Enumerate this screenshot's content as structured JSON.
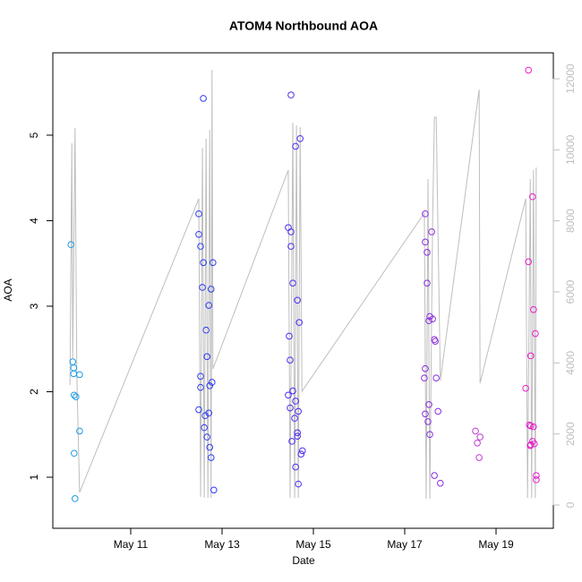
{
  "chart_data": {
    "type": "scatter",
    "title": "ATOM4 Northbound AOA",
    "x_label": "Date",
    "y_label": "AOA",
    "xlim": [
      9.294,
      20.255
    ],
    "ylim": [
      0.403,
      5.963
    ],
    "y2lim": [
      -655,
      12731
    ],
    "xticks": [
      {
        "value": 11,
        "label": "May 11"
      },
      {
        "value": 13,
        "label": "May 13"
      },
      {
        "value": 15,
        "label": "May 15"
      },
      {
        "value": 17,
        "label": "May 17"
      },
      {
        "value": 19,
        "label": "May 19"
      }
    ],
    "yticks": [
      1,
      2,
      3,
      4,
      5
    ],
    "y2ticks": [
      0,
      2000,
      4000,
      6000,
      8000,
      10000,
      12000
    ],
    "y2_color": "#bebebe",
    "point_groups": [
      {
        "color": "#1c9be6",
        "x": [
          9.69,
          9.73,
          9.75,
          9.75,
          9.76,
          9.8,
          9.88,
          9.88,
          9.76,
          9.78
        ],
        "values": [
          3.72,
          2.35,
          2.28,
          2.21,
          1.96,
          1.94,
          2.2,
          1.54,
          1.28,
          0.75
        ]
      },
      {
        "color": "#2f3cf0",
        "x": [
          12.59,
          12.49,
          12.49,
          12.53,
          12.59,
          12.8,
          12.57,
          12.76,
          12.71,
          12.65,
          12.67,
          12.53,
          12.78,
          12.53,
          12.73,
          12.49,
          12.71,
          12.63,
          12.61,
          12.67,
          12.73,
          12.76,
          12.82
        ],
        "values": [
          5.43,
          4.08,
          3.84,
          3.7,
          3.51,
          3.51,
          3.22,
          3.2,
          3.01,
          2.72,
          2.41,
          2.18,
          2.11,
          2.05,
          2.07,
          1.79,
          1.75,
          1.72,
          1.58,
          1.47,
          1.35,
          1.23,
          0.85
        ]
      },
      {
        "color": "#4a2ef0",
        "x": [
          14.51,
          14.71,
          14.61,
          14.45,
          14.51,
          14.51,
          14.55,
          14.65,
          14.69,
          14.47,
          14.49,
          14.55,
          14.45,
          14.61,
          14.49,
          14.67,
          14.59,
          14.65,
          14.65,
          14.53,
          14.76,
          14.73,
          14.61,
          14.67
        ],
        "values": [
          5.47,
          4.96,
          4.87,
          3.92,
          3.87,
          3.7,
          3.27,
          3.07,
          2.81,
          2.65,
          2.37,
          2.01,
          1.96,
          1.89,
          1.81,
          1.77,
          1.69,
          1.52,
          1.48,
          1.42,
          1.31,
          1.27,
          1.12,
          0.92
        ]
      },
      {
        "color": "#8a2ee0",
        "x": [
          17.45,
          17.45,
          17.49,
          17.49,
          17.55,
          17.53,
          17.61,
          17.59,
          17.65,
          17.67,
          17.45,
          17.43,
          17.69,
          17.53,
          17.45,
          17.73,
          17.51,
          17.55,
          17.65,
          17.78
        ],
        "values": [
          4.08,
          3.75,
          3.63,
          3.27,
          2.88,
          2.83,
          2.85,
          3.87,
          2.61,
          2.59,
          2.27,
          2.16,
          2.16,
          1.85,
          1.74,
          1.77,
          1.65,
          1.5,
          1.02,
          0.93
        ]
      },
      {
        "color": "#c03ad4",
        "x": [
          18.55,
          18.65,
          18.59,
          18.63
        ],
        "values": [
          1.54,
          1.47,
          1.4,
          1.23
        ]
      },
      {
        "color": "#e81ec8",
        "x": [
          19.71,
          19.8,
          19.71,
          19.82,
          19.86,
          19.76,
          19.65,
          19.73,
          19.76,
          19.82,
          19.8,
          19.76,
          19.84,
          19.75,
          19.88,
          19.88
        ],
        "values": [
          5.76,
          4.28,
          3.52,
          2.96,
          2.68,
          2.42,
          2.04,
          1.61,
          1.6,
          1.59,
          1.42,
          1.38,
          1.39,
          1.37,
          1.02,
          0.97
        ]
      }
    ],
    "line": {
      "axis": "y2",
      "color": "#bebebe",
      "x": [
        9.67,
        9.71,
        9.73,
        9.78,
        9.82,
        9.88,
        12.49,
        12.53,
        12.57,
        12.61,
        12.65,
        12.69,
        12.73,
        12.76,
        12.78,
        12.8,
        14.45,
        14.49,
        14.55,
        14.59,
        14.63,
        14.67,
        14.71,
        14.75,
        17.43,
        17.47,
        17.51,
        17.55,
        17.61,
        17.65,
        17.69,
        17.78,
        18.63,
        18.65,
        19.65,
        19.69,
        19.75,
        19.78,
        19.82,
        19.86,
        19.88
      ],
      "values": [
        3378,
        10185,
        4134,
        10613,
        3630,
        353,
        8622,
        227,
        10059,
        202,
        10311,
        202,
        10563,
        202,
        12252,
        3832,
        9429,
        202,
        10765,
        202,
        10689,
        202,
        10638,
        3202,
        8219,
        176,
        9176,
        176,
        7916,
        10916,
        10916,
        3504,
        11697,
        3428,
        8622,
        202,
        9176,
        202,
        9429,
        202,
        9504
      ]
    }
  }
}
